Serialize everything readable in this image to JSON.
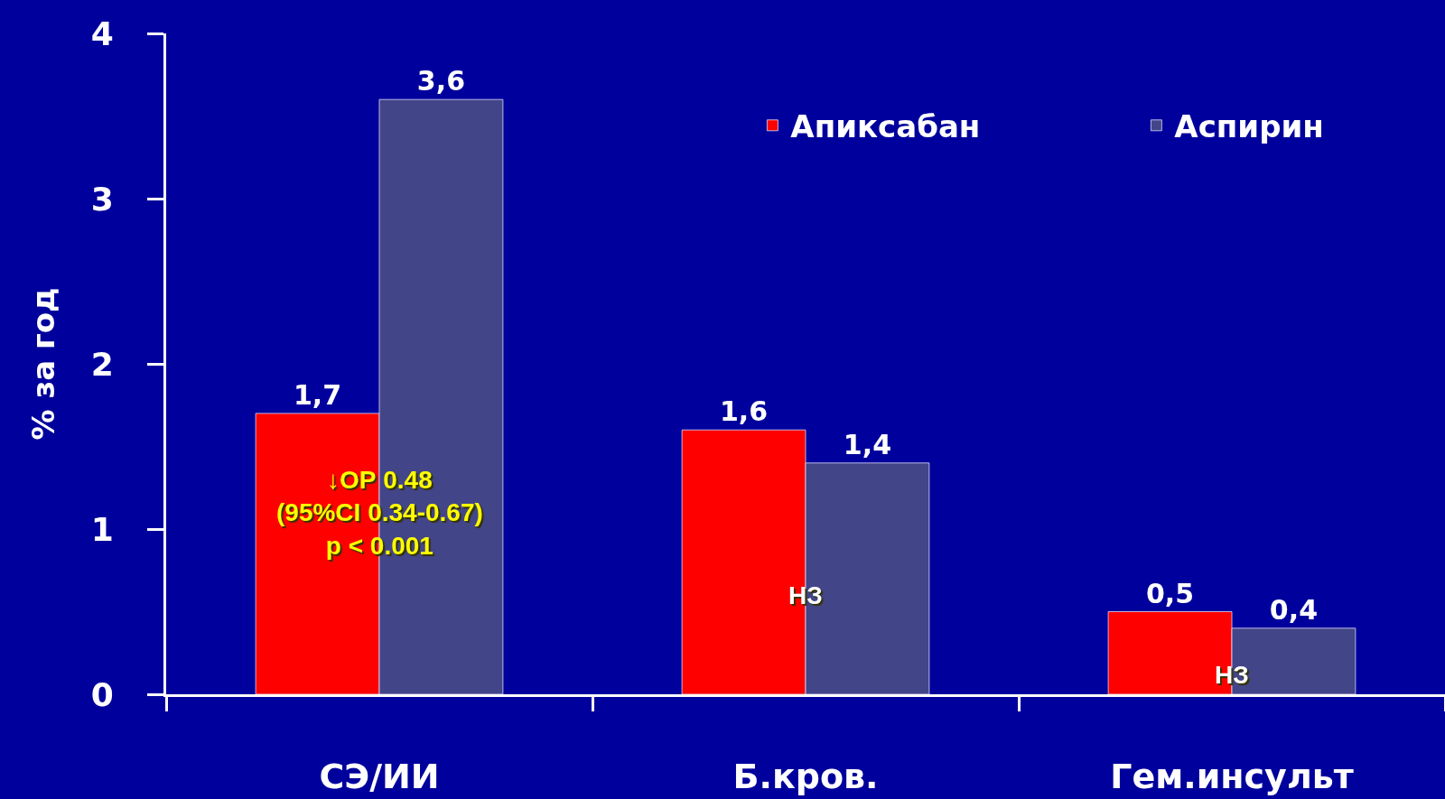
{
  "chart_data": {
    "type": "bar",
    "ylabel": "% за год",
    "categories": [
      "СЭ/ИИ",
      "Б.кров.",
      "Гем.инсульт"
    ],
    "series": [
      {
        "name": "Апиксабан",
        "color": "#ff0000",
        "values": [
          1.7,
          1.6,
          0.5
        ],
        "value_labels": [
          "1,7",
          "1,6",
          "0,5"
        ]
      },
      {
        "name": "Аспирин",
        "color": "#434589",
        "values": [
          3.6,
          1.4,
          0.4
        ],
        "value_labels": [
          "3,6",
          "1,4",
          "0,4"
        ]
      }
    ],
    "ylim": [
      0,
      4
    ],
    "yticks": [
      0,
      1,
      2,
      3,
      4
    ],
    "legend": "top right",
    "annotations": [
      {
        "text": "↓ОР 0.48\n(95%CI 0.34-0.67)\np < 0.001",
        "x": "СЭ/ИИ",
        "y": 1.1
      },
      {
        "text": "НЗ",
        "x": "Б.кров.",
        "y": 0.6
      },
      {
        "text": "НЗ",
        "x": "Гем.инсульт",
        "y": 0.12
      }
    ]
  }
}
